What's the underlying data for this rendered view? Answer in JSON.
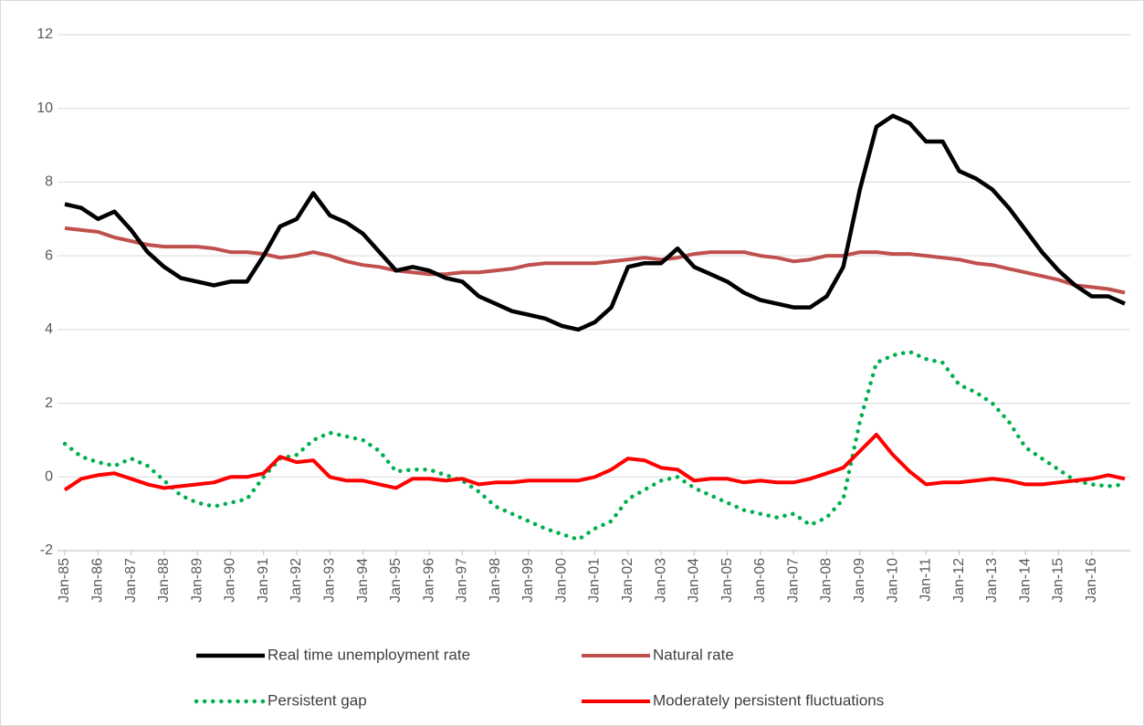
{
  "chart_data": {
    "type": "line",
    "categories": [
      "Jan-85",
      null,
      "Jan-86",
      null,
      "Jan-87",
      null,
      "Jan-88",
      null,
      "Jan-89",
      null,
      "Jan-90",
      null,
      "Jan-91",
      null,
      "Jan-92",
      null,
      "Jan-93",
      null,
      "Jan-94",
      null,
      "Jan-95",
      null,
      "Jan-96",
      null,
      "Jan-97",
      null,
      "Jan-98",
      null,
      "Jan-99",
      null,
      "Jan-00",
      null,
      "Jan-01",
      null,
      "Jan-02",
      null,
      "Jan-03",
      null,
      "Jan-04",
      null,
      "Jan-05",
      null,
      "Jan-06",
      null,
      "Jan-07",
      null,
      "Jan-08",
      null,
      "Jan-09",
      null,
      "Jan-10",
      null,
      "Jan-11",
      null,
      "Jan-12",
      null,
      "Jan-13",
      null,
      "Jan-14",
      null,
      "Jan-15",
      null,
      "Jan-16",
      null,
      null
    ],
    "series": [
      {
        "name": "Real time unemployment rate",
        "color": "#000000",
        "style": "solid",
        "values": [
          7.4,
          7.3,
          7.0,
          7.2,
          6.7,
          6.1,
          5.7,
          5.4,
          5.3,
          5.2,
          5.3,
          5.3,
          6.0,
          6.8,
          7.0,
          7.7,
          7.1,
          6.9,
          6.6,
          6.1,
          5.6,
          5.7,
          5.6,
          5.4,
          5.3,
          4.9,
          4.7,
          4.5,
          4.4,
          4.3,
          4.1,
          4.0,
          4.2,
          4.6,
          5.7,
          5.8,
          5.8,
          6.2,
          5.7,
          5.5,
          5.3,
          5.0,
          4.8,
          4.7,
          4.6,
          4.6,
          4.9,
          5.7,
          7.8,
          9.5,
          9.8,
          9.6,
          9.1,
          9.1,
          8.3,
          8.1,
          7.8,
          7.3,
          6.7,
          6.1,
          5.6,
          5.2,
          4.9,
          4.9,
          4.7
        ]
      },
      {
        "name": "Natural rate",
        "color": "#c0504d",
        "style": "solid",
        "values": [
          6.75,
          6.7,
          6.65,
          6.5,
          6.4,
          6.3,
          6.25,
          6.25,
          6.25,
          6.2,
          6.1,
          6.1,
          6.05,
          5.95,
          6.0,
          6.1,
          6.0,
          5.85,
          5.75,
          5.7,
          5.6,
          5.55,
          5.5,
          5.5,
          5.55,
          5.55,
          5.6,
          5.65,
          5.75,
          5.8,
          5.8,
          5.8,
          5.8,
          5.85,
          5.9,
          5.95,
          5.9,
          5.95,
          6.05,
          6.1,
          6.1,
          6.1,
          6.0,
          5.95,
          5.85,
          5.9,
          6.0,
          6.0,
          6.1,
          6.1,
          6.05,
          6.05,
          6.0,
          5.95,
          5.9,
          5.8,
          5.75,
          5.65,
          5.55,
          5.45,
          5.35,
          5.2,
          5.15,
          5.1,
          5.0
        ]
      },
      {
        "name": "Persistent gap",
        "color": "#00b050",
        "style": "dotted",
        "values": [
          0.9,
          0.55,
          0.4,
          0.3,
          0.5,
          0.3,
          -0.1,
          -0.5,
          -0.7,
          -0.8,
          -0.7,
          -0.6,
          0.0,
          0.5,
          0.6,
          1.0,
          1.2,
          1.1,
          1.0,
          0.7,
          0.15,
          0.2,
          0.2,
          0.05,
          -0.1,
          -0.4,
          -0.8,
          -1.0,
          -1.2,
          -1.4,
          -1.55,
          -1.7,
          -1.4,
          -1.2,
          -0.6,
          -0.35,
          -0.1,
          0.0,
          -0.3,
          -0.5,
          -0.7,
          -0.9,
          -1.0,
          -1.1,
          -1.0,
          -1.3,
          -1.1,
          -0.6,
          1.5,
          3.1,
          3.3,
          3.4,
          3.2,
          3.1,
          2.5,
          2.3,
          2.0,
          1.5,
          0.8,
          0.5,
          0.2,
          -0.1,
          -0.2,
          -0.25,
          -0.2
        ]
      },
      {
        "name": "Moderately persistent fluctuations",
        "color": "#ff0000",
        "style": "solid",
        "values": [
          -0.35,
          -0.05,
          0.05,
          0.1,
          -0.05,
          -0.2,
          -0.3,
          -0.25,
          -0.2,
          -0.15,
          0.0,
          0.0,
          0.1,
          0.55,
          0.4,
          0.45,
          0.0,
          -0.1,
          -0.1,
          -0.2,
          -0.3,
          -0.05,
          -0.05,
          -0.1,
          -0.05,
          -0.2,
          -0.15,
          -0.15,
          -0.1,
          -0.1,
          -0.1,
          -0.1,
          0.0,
          0.2,
          0.5,
          0.45,
          0.25,
          0.2,
          -0.1,
          -0.05,
          -0.05,
          -0.15,
          -0.1,
          -0.15,
          -0.15,
          -0.05,
          0.1,
          0.25,
          0.7,
          1.15,
          0.6,
          0.15,
          -0.2,
          -0.15,
          -0.15,
          -0.1,
          -0.05,
          -0.1,
          -0.2,
          -0.2,
          -0.15,
          -0.1,
          -0.05,
          0.05,
          -0.05
        ]
      }
    ],
    "ylim": [
      -2,
      12
    ],
    "yticks": [
      -2,
      0,
      2,
      4,
      6,
      8,
      10,
      12
    ],
    "grid": true,
    "legend": "bottom"
  }
}
